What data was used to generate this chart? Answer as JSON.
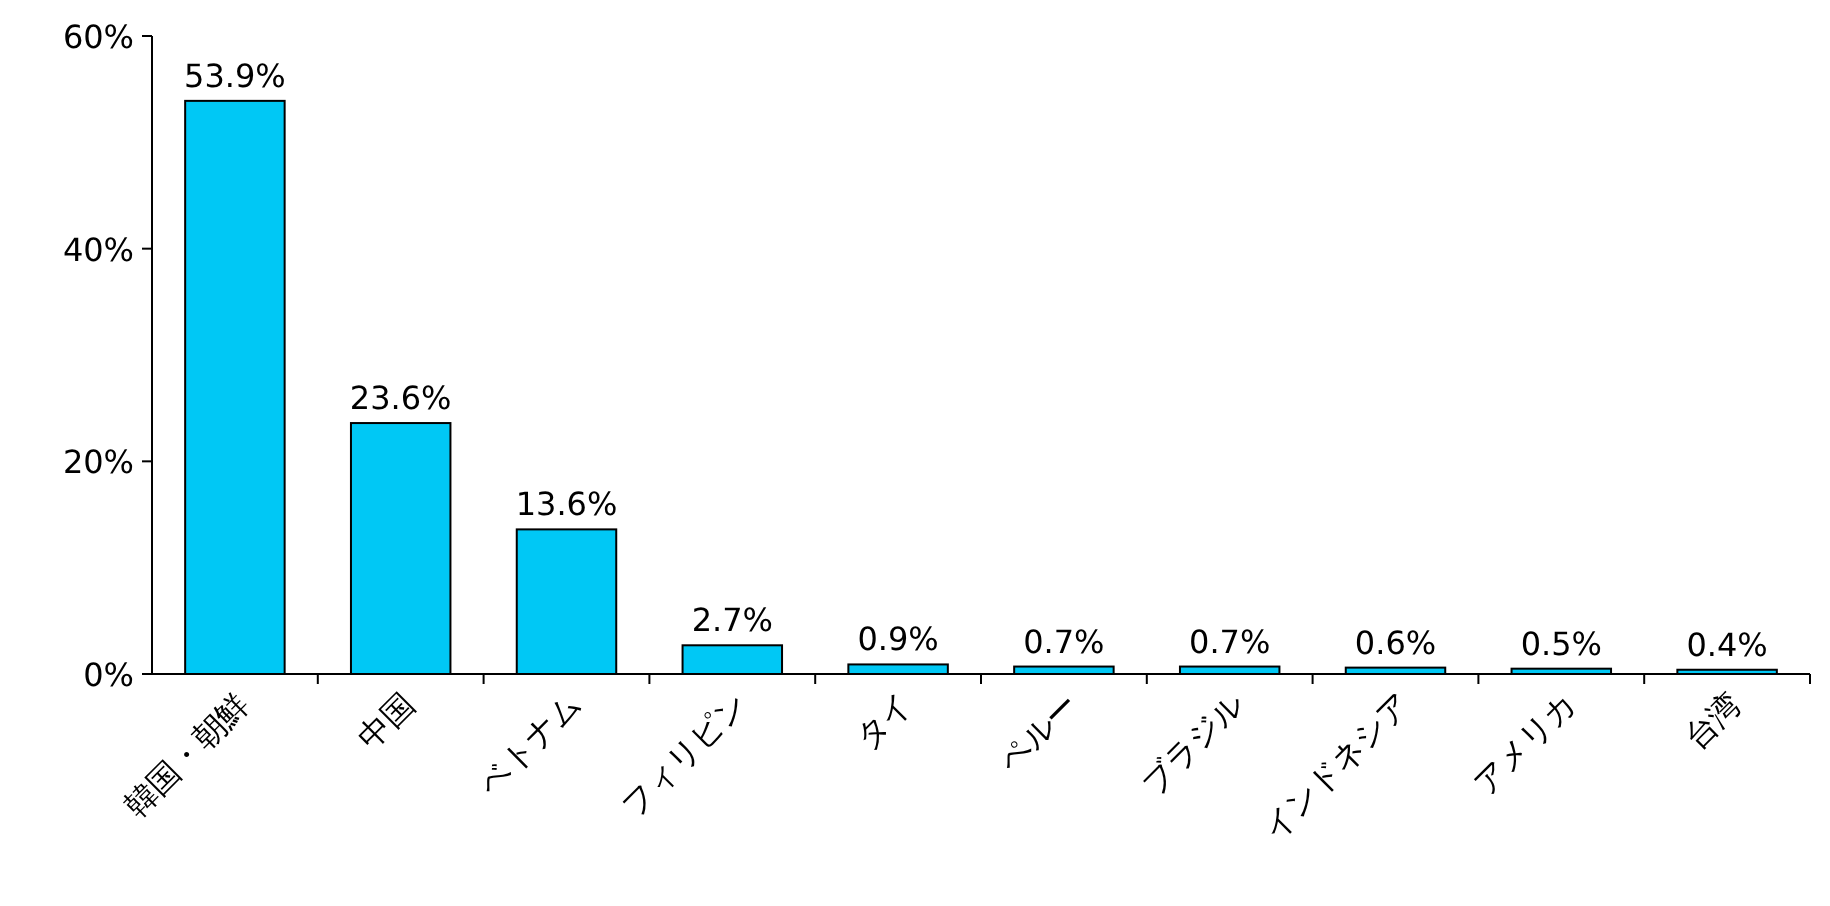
{
  "chart_data": {
    "type": "bar",
    "categories": [
      "韓国・朝鮮",
      "中国",
      "ベトナム",
      "フィリピン",
      "タイ",
      "ペルー",
      "ブラジル",
      "インドネシア",
      "アメリカ",
      "台湾"
    ],
    "values": [
      53.9,
      23.6,
      13.6,
      2.7,
      0.9,
      0.7,
      0.7,
      0.6,
      0.5,
      0.4
    ],
    "value_labels": [
      "53.9%",
      "23.6%",
      "13.6%",
      "2.7%",
      "0.9%",
      "0.7%",
      "0.7%",
      "0.6%",
      "0.5%",
      "0.4%"
    ],
    "color": "#00c8f5",
    "ylim": [
      0,
      60
    ],
    "yticks": [
      {
        "value": 0,
        "label": "0%"
      },
      {
        "value": 20,
        "label": "20%"
      },
      {
        "value": 40,
        "label": "40%"
      },
      {
        "value": 60,
        "label": "60%"
      }
    ],
    "grid": false
  }
}
